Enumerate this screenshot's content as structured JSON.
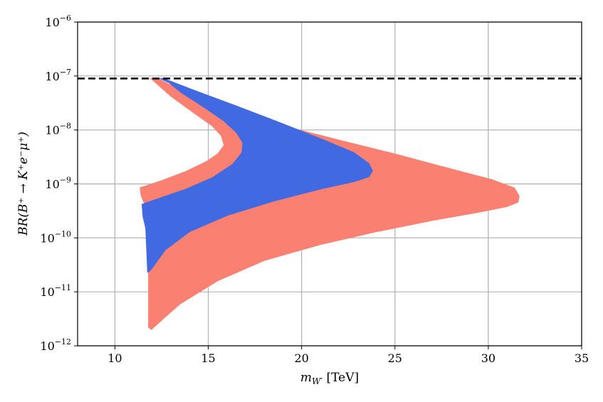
{
  "chart_data": {
    "type": "area",
    "xlabel": "m_{W'} [TeV]",
    "xlabel_main": "m",
    "xlabel_sub": "W′",
    "xlabel_unit": " [TeV]",
    "ylabel": "BR(B⁺ → K⁺e⁻μ⁺)",
    "xlim": [
      8,
      35
    ],
    "ylim": [
      1e-12,
      1e-06
    ],
    "yscale": "log",
    "grid": true,
    "x_ticks": [
      {
        "value": 10,
        "label": "10"
      },
      {
        "value": 15,
        "label": "15"
      },
      {
        "value": 20,
        "label": "20"
      },
      {
        "value": 25,
        "label": "25"
      },
      {
        "value": 30,
        "label": "30"
      },
      {
        "value": 35,
        "label": "35"
      }
    ],
    "y_ticks": [
      {
        "value": 1e-06,
        "exp": -6,
        "base": "10",
        "sup": "−6"
      },
      {
        "value": 1e-07,
        "exp": -7,
        "base": "10",
        "sup": "−7"
      },
      {
        "value": 1e-08,
        "exp": -8,
        "base": "10",
        "sup": "−8"
      },
      {
        "value": 1e-09,
        "exp": -9,
        "base": "10",
        "sup": "−9"
      },
      {
        "value": 1e-10,
        "exp": -10,
        "base": "10",
        "sup": "−10"
      },
      {
        "value": 1e-11,
        "exp": -11,
        "base": "10",
        "sup": "−11"
      },
      {
        "value": 1e-12,
        "exp": -12,
        "base": "10",
        "sup": "−12"
      }
    ],
    "reference_line": {
      "y": 9e-08,
      "style": "dashed",
      "color": "#000000"
    },
    "series": [
      {
        "color": "#fa8072",
        "points": [
          [
            12.3,
            9e-08
          ],
          [
            14.0,
            4.5e-08
          ],
          [
            16.5,
            2.2e-08
          ],
          [
            19.0,
            1.2e-08
          ],
          [
            22.0,
            6.5e-09
          ],
          [
            25.0,
            3.6e-09
          ],
          [
            28.0,
            1.9e-09
          ],
          [
            30.2,
            1.2e-09
          ],
          [
            31.4,
            8.4e-10
          ],
          [
            31.65,
            6e-10
          ],
          [
            31.6,
            4.6e-10
          ],
          [
            31.0,
            3.8e-10
          ],
          [
            29.5,
            3e-10
          ],
          [
            27.0,
            2.1e-10
          ],
          [
            24.0,
            1.3e-10
          ],
          [
            21.0,
            7.5e-11
          ],
          [
            18.0,
            3.8e-11
          ],
          [
            15.5,
            1.6e-11
          ],
          [
            13.5,
            6e-12
          ],
          [
            12.6,
            3.2e-12
          ],
          [
            11.95,
            2e-12
          ],
          [
            11.8,
            2.2e-12
          ],
          [
            11.8,
            7e-11
          ],
          [
            11.75,
            2.5e-10
          ],
          [
            11.6,
            4.2e-10
          ],
          [
            11.4,
            6e-10
          ],
          [
            11.35,
            8.5e-10
          ],
          [
            12.5,
            1.15e-09
          ],
          [
            13.8,
            1.7e-09
          ],
          [
            14.9,
            2.6e-09
          ],
          [
            15.5,
            3.6e-09
          ],
          [
            15.85,
            5.2e-09
          ],
          [
            15.7,
            7.8e-09
          ],
          [
            15.2,
            1.2e-08
          ],
          [
            14.2,
            2.1e-08
          ],
          [
            13.0,
            4.2e-08
          ],
          [
            12.5,
            6e-08
          ],
          [
            12.1,
            8e-08
          ],
          [
            11.9,
            9e-08
          ]
        ]
      },
      {
        "color": "#4169e1",
        "points": [
          [
            12.6,
            9e-08
          ],
          [
            14.2,
            5.5e-08
          ],
          [
            16.5,
            2.8e-08
          ],
          [
            19.0,
            1.3e-08
          ],
          [
            21.2,
            6.5e-09
          ],
          [
            22.8,
            3.8e-09
          ],
          [
            23.6,
            2.4e-09
          ],
          [
            23.8,
            1.75e-09
          ],
          [
            23.6,
            1.35e-09
          ],
          [
            22.8,
            1.1e-09
          ],
          [
            21.0,
            8e-10
          ],
          [
            18.5,
            4.8e-10
          ],
          [
            16.0,
            2.6e-10
          ],
          [
            14.0,
            1.3e-10
          ],
          [
            12.7,
            6e-11
          ],
          [
            11.9,
            2.5e-11
          ],
          [
            11.75,
            2.3e-11
          ],
          [
            11.7,
            6e-11
          ],
          [
            11.65,
            1.5e-10
          ],
          [
            11.5,
            2.5e-10
          ],
          [
            11.45,
            4.2e-10
          ],
          [
            12.3,
            5.3e-10
          ],
          [
            13.8,
            8e-10
          ],
          [
            15.2,
            1.3e-09
          ],
          [
            16.3,
            2.3e-09
          ],
          [
            16.8,
            3.8e-09
          ],
          [
            16.85,
            5.8e-09
          ],
          [
            16.5,
            9e-09
          ],
          [
            15.8,
            1.5e-08
          ],
          [
            14.8,
            2.6e-08
          ],
          [
            13.6,
            4.8e-08
          ],
          [
            12.9,
            7.5e-08
          ],
          [
            12.4,
            9e-08
          ]
        ]
      }
    ]
  }
}
